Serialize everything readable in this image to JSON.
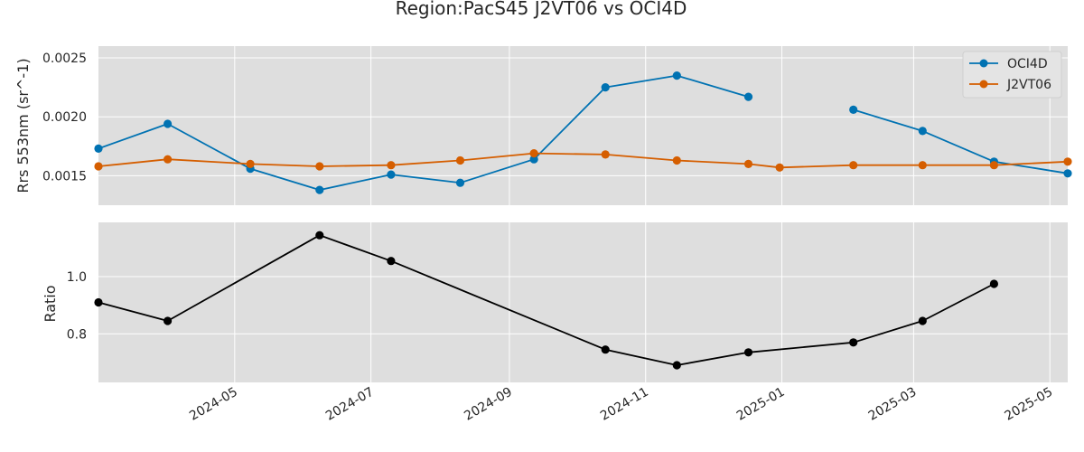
{
  "chart_data": {
    "title": "Region:PacS45 J2VT06 vs OCI4D",
    "x_ticks": [
      "2024-05",
      "2024-07",
      "2024-09",
      "2024-11",
      "2025-01",
      "2025-03",
      "2025-05"
    ],
    "xlim": [
      "2024-03-01",
      "2025-05-09"
    ],
    "grid": true,
    "panels": [
      {
        "type": "line",
        "ylabel": "Rrs 553nm (sr^-1)",
        "ylim": [
          0.00125,
          0.0026
        ],
        "y_ticks": [
          "0.0015",
          "0.0020",
          "0.0025"
        ],
        "legend": "top-right",
        "series": [
          {
            "name": "OCI4D",
            "color": "#0072b2",
            "points": [
              {
                "x": "2024-03-01",
                "y": 0.00173
              },
              {
                "x": "2024-04-01",
                "y": 0.00194
              },
              {
                "x": "2024-05-08",
                "y": 0.00156
              },
              {
                "x": "2024-06-08",
                "y": 0.00138
              },
              {
                "x": "2024-07-10",
                "y": 0.00151
              },
              {
                "x": "2024-08-10",
                "y": 0.00144
              },
              {
                "x": "2024-09-12",
                "y": 0.00164
              },
              {
                "x": "2024-10-14",
                "y": 0.00225
              },
              {
                "x": "2024-11-15",
                "y": 0.00235
              },
              {
                "x": "2024-12-17",
                "y": 0.00217
              },
              null,
              {
                "x": "2025-02-02",
                "y": 0.00206
              },
              {
                "x": "2025-03-05",
                "y": 0.00188
              },
              {
                "x": "2025-04-06",
                "y": 0.00162
              },
              {
                "x": "2025-05-09",
                "y": 0.00152
              }
            ]
          },
          {
            "name": "J2VT06",
            "color": "#d55e00",
            "points": [
              {
                "x": "2024-03-01",
                "y": 0.00158
              },
              {
                "x": "2024-04-01",
                "y": 0.00164
              },
              {
                "x": "2024-05-08",
                "y": 0.0016
              },
              {
                "x": "2024-06-08",
                "y": 0.00158
              },
              {
                "x": "2024-07-10",
                "y": 0.00159
              },
              {
                "x": "2024-08-10",
                "y": 0.00163
              },
              {
                "x": "2024-09-12",
                "y": 0.00169
              },
              {
                "x": "2024-10-14",
                "y": 0.00168
              },
              {
                "x": "2024-11-15",
                "y": 0.00163
              },
              {
                "x": "2024-12-17",
                "y": 0.0016
              },
              {
                "x": "2024-12-31",
                "y": 0.00157
              },
              {
                "x": "2025-02-02",
                "y": 0.00159
              },
              {
                "x": "2025-03-05",
                "y": 0.00159
              },
              {
                "x": "2025-04-06",
                "y": 0.00159
              },
              {
                "x": "2025-05-09",
                "y": 0.00162
              }
            ]
          }
        ]
      },
      {
        "type": "line",
        "ylabel": "Ratio",
        "ylim": [
          0.63,
          1.19
        ],
        "y_ticks": [
          "0.8",
          "1.0"
        ],
        "series": [
          {
            "name": "",
            "color": "#000000",
            "points": [
              {
                "x": "2024-03-01",
                "y": 0.91
              },
              {
                "x": "2024-04-01",
                "y": 0.845
              },
              {
                "x": "2024-06-08",
                "y": 1.145
              },
              {
                "x": "2024-07-10",
                "y": 1.055
              },
              {
                "x": "2024-10-14",
                "y": 0.745
              },
              {
                "x": "2024-11-15",
                "y": 0.69
              },
              {
                "x": "2024-12-17",
                "y": 0.735
              },
              {
                "x": "2025-02-02",
                "y": 0.77
              },
              {
                "x": "2025-03-05",
                "y": 0.845
              },
              {
                "x": "2025-04-06",
                "y": 0.975
              }
            ]
          }
        ]
      }
    ]
  }
}
